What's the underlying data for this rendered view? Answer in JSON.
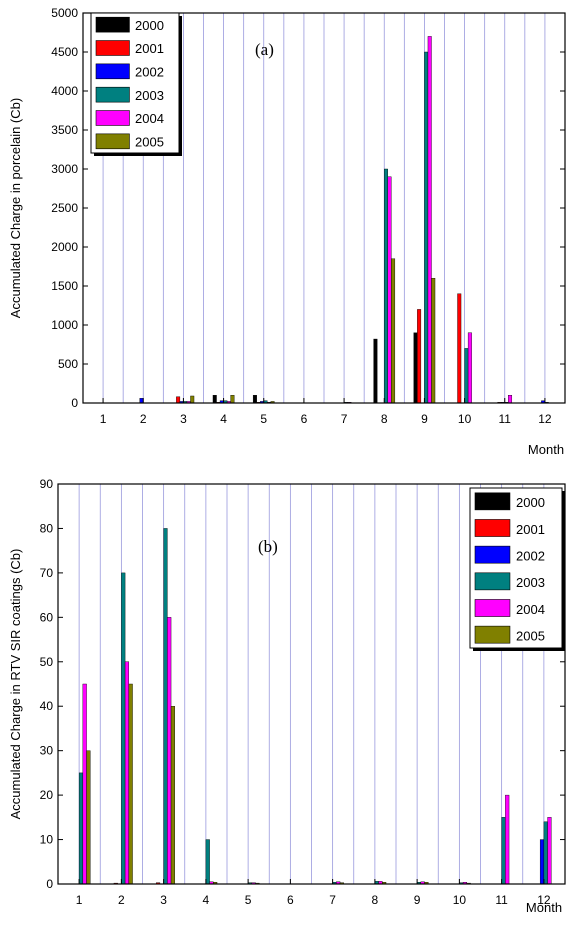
{
  "chart_data": [
    {
      "type": "bar",
      "panel_label": "(a)",
      "title": "",
      "xlabel": "Month",
      "ylabel": "Accumulated Charge in porcelain (Cb)",
      "categories": [
        "1",
        "2",
        "3",
        "4",
        "5",
        "6",
        "7",
        "8",
        "9",
        "10",
        "11",
        "12"
      ],
      "ylim": [
        0,
        5000
      ],
      "yticks": [
        "0",
        "500",
        "1000",
        "1500",
        "2000",
        "2500",
        "3000",
        "3500",
        "4000",
        "4500",
        "5000"
      ],
      "grid": "vertical",
      "legend_position": "top-left",
      "series": [
        {
          "name": "2000",
          "color": "#000000",
          "values": [
            0,
            0,
            0,
            100,
            100,
            0,
            0,
            820,
            900,
            0,
            0,
            0
          ]
        },
        {
          "name": "2001",
          "color": "#ff0000",
          "values": [
            0,
            0,
            80,
            10,
            10,
            0,
            0,
            0,
            1200,
            1400,
            10,
            0
          ]
        },
        {
          "name": "2002",
          "color": "#0000ff",
          "values": [
            0,
            60,
            20,
            30,
            20,
            0,
            0,
            0,
            0,
            0,
            10,
            30
          ]
        },
        {
          "name": "2003",
          "color": "#008080",
          "values": [
            0,
            0,
            20,
            30,
            30,
            0,
            10,
            3000,
            4500,
            700,
            10,
            10
          ]
        },
        {
          "name": "2004",
          "color": "#ff00ff",
          "values": [
            0,
            0,
            20,
            20,
            10,
            0,
            10,
            2900,
            4700,
            900,
            100,
            0
          ]
        },
        {
          "name": "2005",
          "color": "#808000",
          "values": [
            0,
            0,
            90,
            100,
            20,
            0,
            0,
            1850,
            1600,
            0,
            0,
            0
          ]
        }
      ]
    },
    {
      "type": "bar",
      "panel_label": "(b)",
      "title": "",
      "xlabel": "Month",
      "ylabel": "Accumulated Charge in RTV SIR coatings (Cb)",
      "categories": [
        "1",
        "2",
        "3",
        "4",
        "5",
        "6",
        "7",
        "8",
        "9",
        "10",
        "11",
        "12"
      ],
      "ylim": [
        0,
        90
      ],
      "yticks": [
        "0",
        "10",
        "20",
        "30",
        "40",
        "50",
        "60",
        "70",
        "80",
        "90"
      ],
      "grid": "vertical",
      "legend_position": "top-right",
      "series": [
        {
          "name": "2000",
          "color": "#000000",
          "values": [
            0,
            0,
            0,
            0,
            0,
            0,
            0,
            0,
            0,
            0,
            0,
            0
          ]
        },
        {
          "name": "2001",
          "color": "#ff0000",
          "values": [
            0,
            0.2,
            0.3,
            0,
            0,
            0,
            0,
            0,
            0,
            0,
            0,
            0
          ]
        },
        {
          "name": "2002",
          "color": "#0000ff",
          "values": [
            0,
            0,
            0,
            0,
            0,
            0,
            0,
            0,
            0,
            0,
            0,
            10
          ]
        },
        {
          "name": "2003",
          "color": "#008080",
          "values": [
            25,
            70,
            80,
            10,
            0.3,
            0,
            0.4,
            0.6,
            0.4,
            0.3,
            15,
            14
          ]
        },
        {
          "name": "2004",
          "color": "#ff00ff",
          "values": [
            45,
            50,
            60,
            0.5,
            0.3,
            0,
            0.5,
            0.6,
            0.5,
            0.4,
            20,
            15
          ]
        },
        {
          "name": "2005",
          "color": "#808000",
          "values": [
            30,
            45,
            40,
            0.4,
            0.2,
            0,
            0.3,
            0.4,
            0.4,
            0.2,
            0,
            0
          ]
        }
      ]
    }
  ]
}
